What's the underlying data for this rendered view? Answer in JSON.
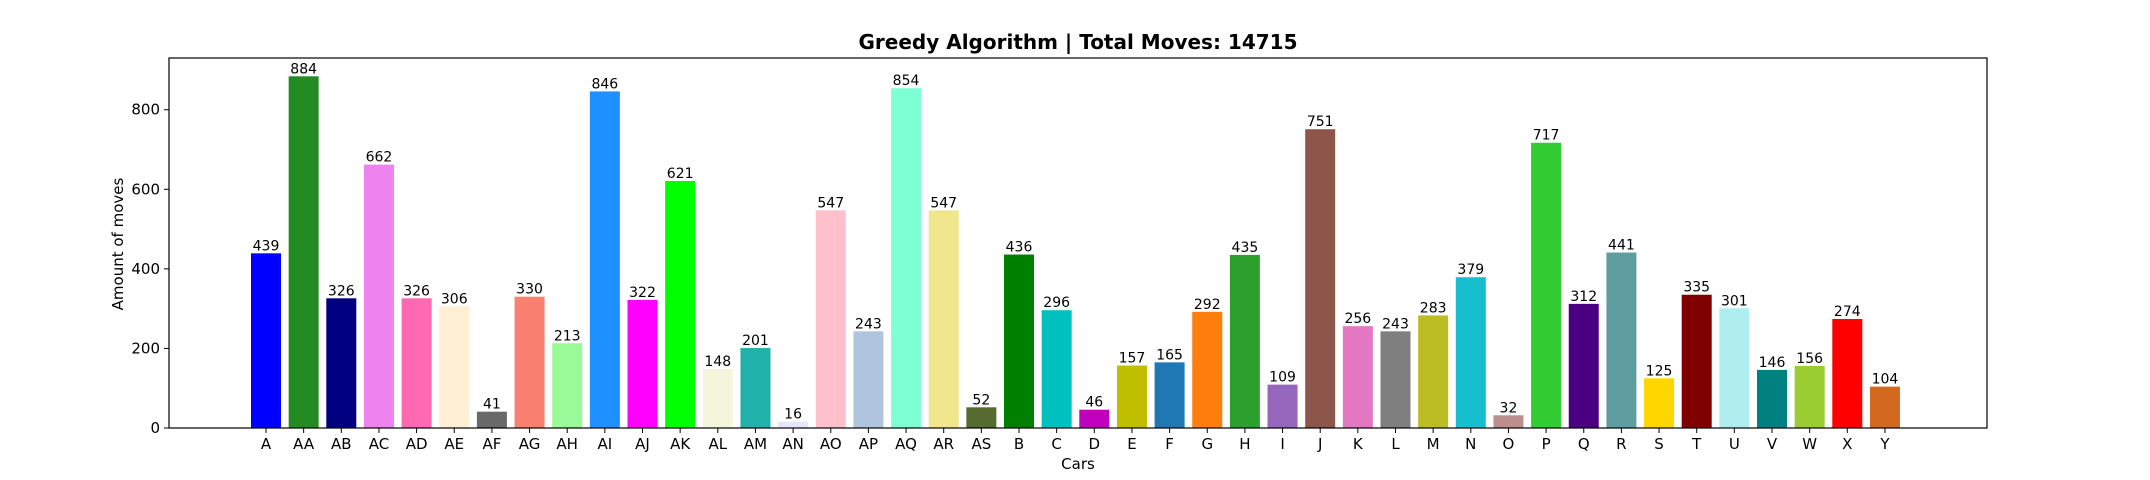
{
  "chart_data": {
    "type": "bar",
    "title": "Greedy Algorithm | Total Moves: 14715",
    "xlabel": "Cars",
    "ylabel": "Amount of moves",
    "ylim": [
      0,
      930
    ],
    "yticks": [
      0,
      200,
      400,
      600,
      800
    ],
    "grid": false,
    "legend": "none",
    "categories": [
      "A",
      "AA",
      "AB",
      "AC",
      "AD",
      "AE",
      "AF",
      "AG",
      "AH",
      "AI",
      "AJ",
      "AK",
      "AL",
      "AM",
      "AN",
      "AO",
      "AP",
      "AQ",
      "AR",
      "AS",
      "B",
      "C",
      "D",
      "E",
      "F",
      "G",
      "H",
      "I",
      "J",
      "K",
      "L",
      "M",
      "N",
      "O",
      "P",
      "Q",
      "R",
      "S",
      "T",
      "U",
      "V",
      "W",
      "X",
      "Y"
    ],
    "values": [
      439,
      884,
      326,
      662,
      326,
      306,
      41,
      330,
      213,
      846,
      322,
      621,
      148,
      201,
      16,
      547,
      243,
      854,
      547,
      52,
      436,
      296,
      46,
      157,
      165,
      292,
      435,
      109,
      751,
      256,
      243,
      283,
      379,
      32,
      717,
      312,
      441,
      125,
      335,
      301,
      146,
      156,
      274,
      104
    ],
    "colors": [
      "#0000ff",
      "#228b22",
      "#000080",
      "#ee82ee",
      "#ff69b4",
      "#ffefd5",
      "#696969",
      "#fa8072",
      "#98fb98",
      "#1e90ff",
      "#ff00ff",
      "#00ff00",
      "#f5f5dc",
      "#20b2aa",
      "#e6e6fa",
      "#ffc0cb",
      "#b0c4de",
      "#7fffd4",
      "#f0e68c",
      "#556b2f",
      "#008000",
      "#00bfbf",
      "#bf00bf",
      "#bfbf00",
      "#1f77b4",
      "#ff7f0e",
      "#2ca02c",
      "#9467bd",
      "#8c564b",
      "#e377c2",
      "#7f7f7f",
      "#bcbd22",
      "#17becf",
      "#bc8f8f",
      "#32cd32",
      "#4b0082",
      "#5f9ea0",
      "#ffd700",
      "#800000",
      "#afeeee",
      "#008080",
      "#9acd32",
      "#ff0000",
      "#d2691e"
    ]
  }
}
